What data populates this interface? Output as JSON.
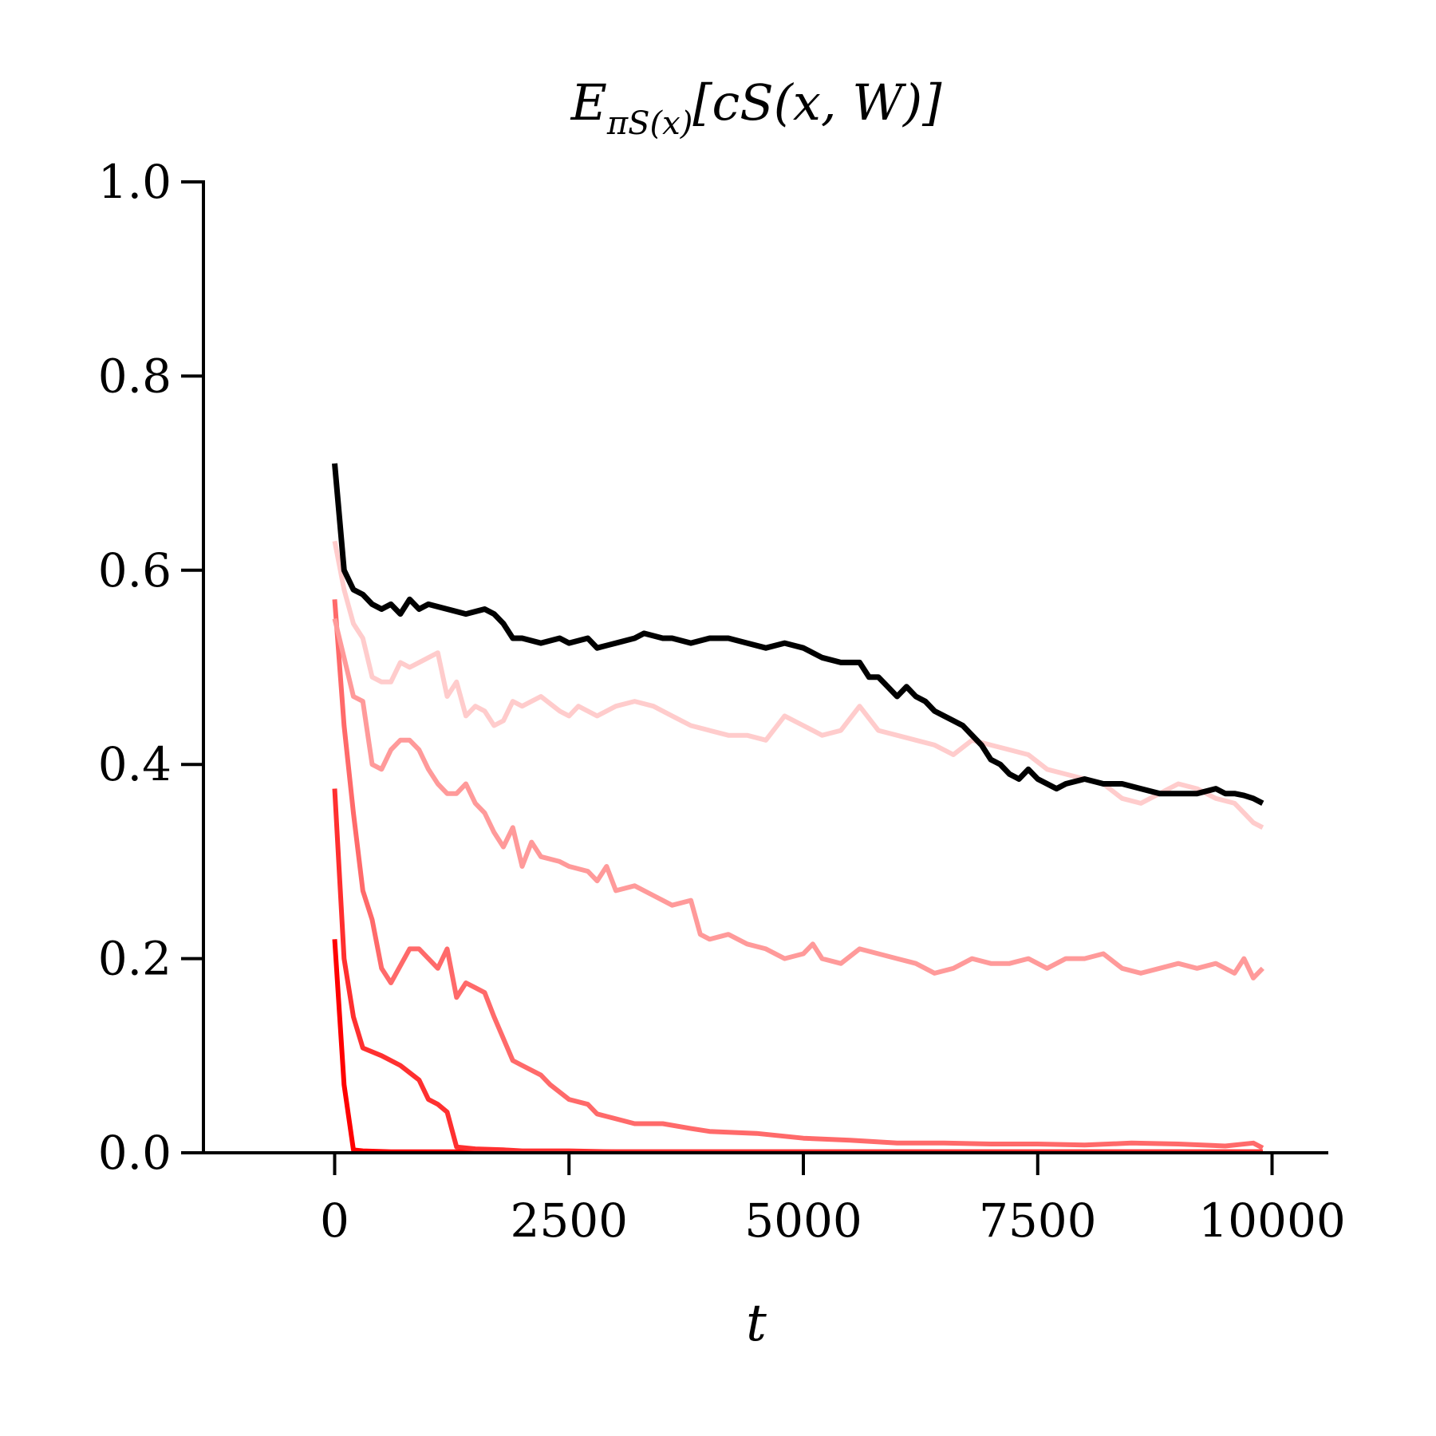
{
  "chart_data": {
    "type": "line",
    "title": "E_{πS(x)}[c_S(x, W)]",
    "title_parts": {
      "main": "E",
      "sub": "πS(x)",
      "rest": "[cS(x, W)]"
    },
    "xlabel": "t",
    "ylabel": "",
    "xlim": [
      -1400,
      10600
    ],
    "ylim": [
      0,
      1
    ],
    "xticks": [
      0,
      2500,
      5000,
      7500,
      10000
    ],
    "xtick_labels": [
      "0",
      "2500",
      "5000",
      "7500",
      "10000"
    ],
    "yticks": [
      0.0,
      0.2,
      0.4,
      0.6,
      0.8,
      1.0
    ],
    "ytick_labels": [
      "0.0",
      "0.2",
      "0.4",
      "0.6",
      "0.8",
      "1.0"
    ],
    "grid": false,
    "series": [
      {
        "color": "#ff0000",
        "width": 6,
        "x": [
          0,
          100,
          200,
          300,
          600,
          1000,
          1500,
          2000,
          3000,
          4000,
          5000,
          6000,
          7000,
          8000,
          9000,
          9900
        ],
        "y": [
          0.22,
          0.07,
          0.003,
          0.002,
          0.001,
          0.001,
          0.001,
          0.001,
          0.001,
          0.001,
          0.001,
          0.001,
          0.001,
          0.001,
          0.001,
          0.001
        ]
      },
      {
        "color": "#ff3030",
        "width": 6,
        "x": [
          0,
          100,
          200,
          300,
          500,
          700,
          900,
          1000,
          1100,
          1200,
          1300,
          1500,
          1800,
          2000,
          2500,
          3000,
          4000,
          5000,
          6000,
          7000,
          8000,
          9000,
          9900
        ],
        "y": [
          0.375,
          0.2,
          0.14,
          0.108,
          0.1,
          0.09,
          0.075,
          0.055,
          0.05,
          0.042,
          0.006,
          0.004,
          0.003,
          0.002,
          0.002,
          0.001,
          0.001,
          0.001,
          0.001,
          0.001,
          0.001,
          0.001,
          0.001
        ]
      },
      {
        "color": "#ff6a6a",
        "width": 6,
        "x": [
          0,
          100,
          200,
          300,
          400,
          500,
          600,
          800,
          900,
          1000,
          1100,
          1200,
          1300,
          1400,
          1500,
          1600,
          1700,
          1900,
          2000,
          2200,
          2300,
          2500,
          2700,
          2800,
          3000,
          3200,
          3500,
          3800,
          4000,
          4500,
          5000,
          5500,
          6000,
          6500,
          7000,
          7500,
          8000,
          8500,
          9000,
          9500,
          9800,
          9900
        ],
        "y": [
          0.57,
          0.44,
          0.35,
          0.27,
          0.24,
          0.19,
          0.175,
          0.21,
          0.21,
          0.2,
          0.19,
          0.21,
          0.16,
          0.175,
          0.17,
          0.165,
          0.14,
          0.095,
          0.09,
          0.08,
          0.07,
          0.055,
          0.05,
          0.04,
          0.035,
          0.03,
          0.03,
          0.025,
          0.022,
          0.02,
          0.015,
          0.013,
          0.01,
          0.01,
          0.009,
          0.009,
          0.008,
          0.01,
          0.009,
          0.007,
          0.01,
          0.005
        ]
      },
      {
        "color": "#ff9a9a",
        "width": 6,
        "x": [
          0,
          100,
          200,
          300,
          400,
          500,
          600,
          700,
          800,
          900,
          1000,
          1100,
          1200,
          1300,
          1400,
          1500,
          1600,
          1700,
          1800,
          1900,
          2000,
          2100,
          2200,
          2400,
          2500,
          2700,
          2800,
          2900,
          3000,
          3200,
          3400,
          3600,
          3800,
          3900,
          4000,
          4200,
          4400,
          4600,
          4800,
          5000,
          5100,
          5200,
          5400,
          5600,
          5800,
          6000,
          6200,
          6400,
          6600,
          6800,
          7000,
          7200,
          7400,
          7600,
          7800,
          8000,
          8200,
          8400,
          8600,
          8800,
          9000,
          9200,
          9400,
          9600,
          9700,
          9800,
          9900
        ],
        "y": [
          0.55,
          0.51,
          0.47,
          0.465,
          0.4,
          0.395,
          0.415,
          0.425,
          0.425,
          0.415,
          0.395,
          0.38,
          0.37,
          0.37,
          0.38,
          0.36,
          0.35,
          0.33,
          0.315,
          0.335,
          0.295,
          0.32,
          0.305,
          0.3,
          0.295,
          0.29,
          0.28,
          0.295,
          0.27,
          0.275,
          0.265,
          0.255,
          0.26,
          0.225,
          0.22,
          0.225,
          0.215,
          0.21,
          0.2,
          0.205,
          0.215,
          0.2,
          0.195,
          0.21,
          0.205,
          0.2,
          0.195,
          0.185,
          0.19,
          0.2,
          0.195,
          0.195,
          0.2,
          0.19,
          0.2,
          0.2,
          0.205,
          0.19,
          0.185,
          0.19,
          0.195,
          0.19,
          0.195,
          0.185,
          0.2,
          0.18,
          0.19
        ]
      },
      {
        "color": "#ffcccc",
        "width": 6,
        "x": [
          0,
          100,
          200,
          300,
          400,
          500,
          600,
          700,
          800,
          900,
          1000,
          1100,
          1200,
          1300,
          1400,
          1500,
          1600,
          1700,
          1800,
          1900,
          2000,
          2200,
          2400,
          2500,
          2600,
          2800,
          3000,
          3200,
          3400,
          3600,
          3800,
          4000,
          4200,
          4400,
          4600,
          4800,
          5000,
          5200,
          5400,
          5600,
          5800,
          6000,
          6200,
          6400,
          6600,
          6800,
          7000,
          7200,
          7400,
          7600,
          7800,
          8000,
          8200,
          8400,
          8600,
          8800,
          9000,
          9200,
          9400,
          9600,
          9700,
          9800,
          9900
        ],
        "y": [
          0.63,
          0.58,
          0.545,
          0.53,
          0.49,
          0.485,
          0.485,
          0.505,
          0.5,
          0.505,
          0.51,
          0.515,
          0.47,
          0.485,
          0.45,
          0.46,
          0.455,
          0.44,
          0.445,
          0.465,
          0.46,
          0.47,
          0.455,
          0.45,
          0.46,
          0.45,
          0.46,
          0.465,
          0.46,
          0.45,
          0.44,
          0.435,
          0.43,
          0.43,
          0.425,
          0.45,
          0.44,
          0.43,
          0.435,
          0.46,
          0.435,
          0.43,
          0.425,
          0.42,
          0.41,
          0.425,
          0.42,
          0.415,
          0.41,
          0.395,
          0.39,
          0.385,
          0.38,
          0.365,
          0.36,
          0.37,
          0.38,
          0.375,
          0.365,
          0.36,
          0.35,
          0.34,
          0.335
        ]
      },
      {
        "color": "#000000",
        "width": 7,
        "x": [
          0,
          100,
          200,
          300,
          400,
          500,
          600,
          700,
          800,
          900,
          1000,
          1200,
          1400,
          1600,
          1700,
          1800,
          1900,
          2000,
          2200,
          2400,
          2500,
          2700,
          2800,
          3000,
          3200,
          3300,
          3500,
          3600,
          3800,
          4000,
          4200,
          4400,
          4600,
          4800,
          5000,
          5200,
          5400,
          5600,
          5700,
          5800,
          5900,
          6000,
          6100,
          6200,
          6300,
          6400,
          6500,
          6600,
          6700,
          6800,
          6900,
          7000,
          7100,
          7200,
          7300,
          7400,
          7500,
          7600,
          7700,
          7800,
          8000,
          8200,
          8400,
          8600,
          8800,
          9000,
          9200,
          9400,
          9500,
          9600,
          9700,
          9800,
          9900
        ],
        "y": [
          0.71,
          0.6,
          0.58,
          0.575,
          0.565,
          0.56,
          0.565,
          0.555,
          0.57,
          0.56,
          0.565,
          0.56,
          0.555,
          0.56,
          0.555,
          0.545,
          0.53,
          0.53,
          0.525,
          0.53,
          0.525,
          0.53,
          0.52,
          0.525,
          0.53,
          0.535,
          0.53,
          0.53,
          0.525,
          0.53,
          0.53,
          0.525,
          0.52,
          0.525,
          0.52,
          0.51,
          0.505,
          0.505,
          0.49,
          0.49,
          0.48,
          0.47,
          0.48,
          0.47,
          0.465,
          0.455,
          0.45,
          0.445,
          0.44,
          0.43,
          0.42,
          0.405,
          0.4,
          0.39,
          0.385,
          0.395,
          0.385,
          0.38,
          0.375,
          0.38,
          0.385,
          0.38,
          0.38,
          0.375,
          0.37,
          0.37,
          0.37,
          0.375,
          0.37,
          0.37,
          0.368,
          0.365,
          0.36
        ]
      }
    ]
  }
}
